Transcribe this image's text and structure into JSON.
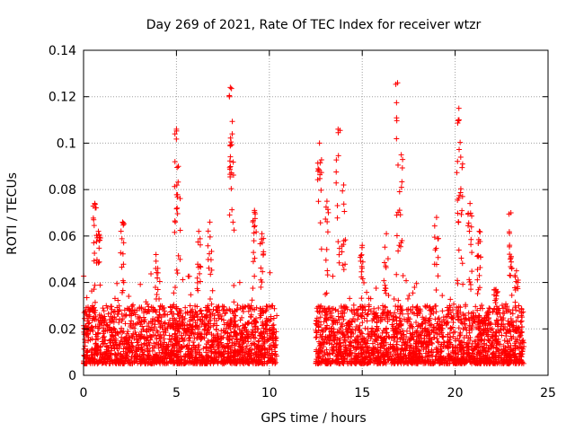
{
  "chart_data": {
    "type": "scatter",
    "title": "Day 269 of 2021, Rate Of TEC Index for receiver wtzr",
    "xlabel": "GPS time / hours",
    "ylabel": "ROTI / TECUs",
    "xlim": [
      0,
      25
    ],
    "ylim": [
      0,
      0.14
    ],
    "xticks": [
      0,
      5,
      10,
      15,
      20,
      25
    ],
    "yticks": [
      0,
      0.02,
      0.04,
      0.06,
      0.08,
      0.1,
      0.12,
      0.14
    ],
    "xtick_labels": [
      "0",
      "5",
      "10",
      "15",
      "20",
      "25"
    ],
    "ytick_labels": [
      "0",
      "0.02",
      "0.04",
      "0.06",
      "0.08",
      "0.1",
      "0.12",
      "0.14"
    ],
    "grid": true,
    "marker": "+",
    "colors": {
      "series": "#ff0000",
      "grid": "#a0a0a0",
      "axis": "#000000"
    },
    "series": [
      {
        "name": "ROTI",
        "segments": [
          [
            0.0,
            10.4
          ],
          [
            12.5,
            23.7
          ]
        ],
        "baseline_range": [
          0.005,
          0.03
        ],
        "spikes": [
          {
            "x": 0.6,
            "y": 0.074
          },
          {
            "x": 0.8,
            "y": 0.062
          },
          {
            "x": 2.1,
            "y": 0.066
          },
          {
            "x": 3.9,
            "y": 0.052
          },
          {
            "x": 5.0,
            "y": 0.106
          },
          {
            "x": 5.1,
            "y": 0.09
          },
          {
            "x": 6.2,
            "y": 0.062
          },
          {
            "x": 6.8,
            "y": 0.066
          },
          {
            "x": 7.9,
            "y": 0.124
          },
          {
            "x": 8.0,
            "y": 0.104
          },
          {
            "x": 9.2,
            "y": 0.071
          },
          {
            "x": 9.6,
            "y": 0.061
          },
          {
            "x": 12.7,
            "y": 0.1
          },
          {
            "x": 13.1,
            "y": 0.075
          },
          {
            "x": 13.7,
            "y": 0.106
          },
          {
            "x": 14.0,
            "y": 0.082
          },
          {
            "x": 15.0,
            "y": 0.056
          },
          {
            "x": 16.3,
            "y": 0.061
          },
          {
            "x": 16.9,
            "y": 0.126
          },
          {
            "x": 17.1,
            "y": 0.095
          },
          {
            "x": 19.0,
            "y": 0.068
          },
          {
            "x": 20.2,
            "y": 0.115
          },
          {
            "x": 20.3,
            "y": 0.094
          },
          {
            "x": 20.8,
            "y": 0.074
          },
          {
            "x": 21.3,
            "y": 0.062
          },
          {
            "x": 22.2,
            "y": 0.037
          },
          {
            "x": 23.0,
            "y": 0.07
          },
          {
            "x": 23.3,
            "y": 0.045
          }
        ]
      }
    ]
  }
}
